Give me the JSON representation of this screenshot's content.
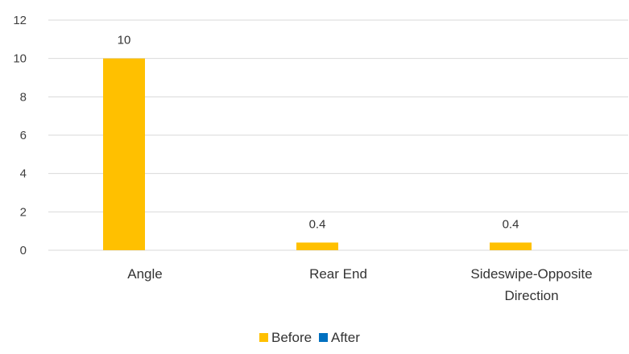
{
  "chart_data": {
    "type": "bar",
    "categories": [
      "Angle",
      "Rear End",
      "Sideswipe-Opposite Direction"
    ],
    "category_lines": [
      [
        "Angle"
      ],
      [
        "Rear End"
      ],
      [
        "Sideswipe-Opposite",
        "Direction"
      ]
    ],
    "series": [
      {
        "name": "Before",
        "values": [
          10,
          0.4,
          0.4
        ],
        "color": "#FFC000",
        "data_labels": [
          "10",
          "0.4",
          "0.4"
        ]
      },
      {
        "name": "After",
        "values": [
          0,
          0,
          0
        ],
        "color": "#0070C0",
        "data_labels": []
      }
    ],
    "ylim": [
      0,
      12
    ],
    "y_ticks": [
      0,
      2,
      4,
      6,
      8,
      10,
      12
    ],
    "y_tick_labels": [
      "0",
      "2",
      "4",
      "6",
      "8",
      "10",
      "12"
    ],
    "grid": true,
    "legend_position": "bottom",
    "grid_color": "#D9D9D9"
  }
}
